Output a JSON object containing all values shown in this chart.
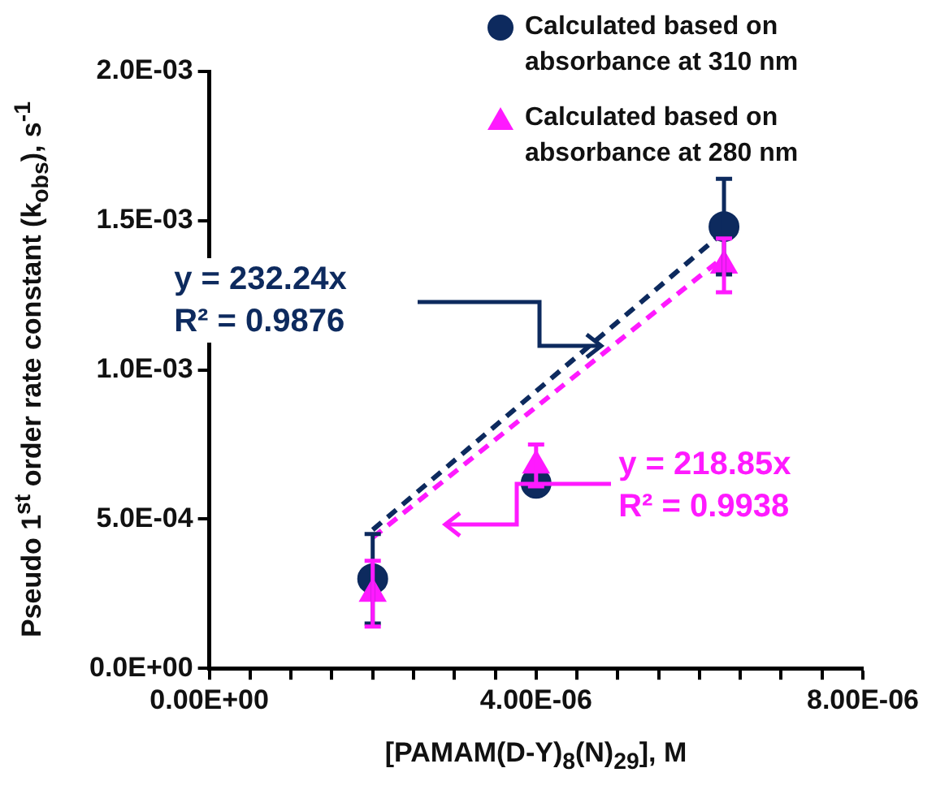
{
  "chart_data": {
    "type": "scatter",
    "xlabel": "[PAMAM(D-Y)$_{8}$(N)$_{29}$], M",
    "ylabel": "Pseudo 1$^{st}$ order rate constant (k$_{obs}$), s$^{-1}$",
    "xlim": [
      0,
      8e-06
    ],
    "ylim": [
      0,
      0.002
    ],
    "xticks": [
      {
        "value": 0,
        "label": "0.00E+00"
      },
      {
        "value": 5e-07,
        "label": null
      },
      {
        "value": 1e-06,
        "label": null
      },
      {
        "value": 1.5e-06,
        "label": null
      },
      {
        "value": 2e-06,
        "label": null
      },
      {
        "value": 2.5e-06,
        "label": null
      },
      {
        "value": 3e-06,
        "label": null
      },
      {
        "value": 3.5e-06,
        "label": null
      },
      {
        "value": 4e-06,
        "label": "4.00E-06"
      },
      {
        "value": 4.5e-06,
        "label": null
      },
      {
        "value": 5e-06,
        "label": null
      },
      {
        "value": 5.5e-06,
        "label": null
      },
      {
        "value": 6e-06,
        "label": null
      },
      {
        "value": 6.5e-06,
        "label": null
      },
      {
        "value": 7e-06,
        "label": null
      },
      {
        "value": 7.5e-06,
        "label": null
      },
      {
        "value": 8e-06,
        "label": "8.00E-06"
      }
    ],
    "yticks": [
      {
        "value": 0,
        "label": "0.0E+00"
      },
      {
        "value": 0.0005,
        "label": "5.0E-04"
      },
      {
        "value": 0.001,
        "label": "1.0E-03"
      },
      {
        "value": 0.0015,
        "label": "1.5E-03"
      },
      {
        "value": 0.002,
        "label": "2.0E-03"
      }
    ],
    "legend": "top right",
    "grid": false,
    "series": [
      {
        "name": "Calculated based on absorbance at 310 nm",
        "marker": "circle",
        "color": "#0d2a5e",
        "x": [
          2e-06,
          4e-06,
          6.3e-06
        ],
        "values": [
          0.0003,
          0.00062,
          0.00148
        ],
        "errors": [
          0.00015,
          null,
          0.00016
        ]
      },
      {
        "name": "Calculated based on absorbance at 280 nm",
        "marker": "triangle",
        "color": "#ff1aff",
        "x": [
          2e-06,
          4e-06,
          6.3e-06
        ],
        "values": [
          0.00025,
          0.00068,
          0.00135
        ],
        "errors": [
          0.00011,
          7e-05,
          9e-05
        ]
      },
      {
        "type": "line",
        "marker": "none",
        "line_style": "dashed",
        "color": "#0d2a5e",
        "x": [
          2e-06,
          6.3e-06
        ],
        "values": [
          0.000464,
          0.001463
        ]
      },
      {
        "type": "line",
        "marker": "none",
        "line_style": "dashed",
        "color": "#ff1aff",
        "x": [
          2e-06,
          6.3e-06
        ],
        "values": [
          0.000438,
          0.001379
        ]
      }
    ],
    "annotations": [
      "y = 232.24x\nR² = 0.9876",
      "y = 218.85x\nR² = 0.9938"
    ]
  }
}
